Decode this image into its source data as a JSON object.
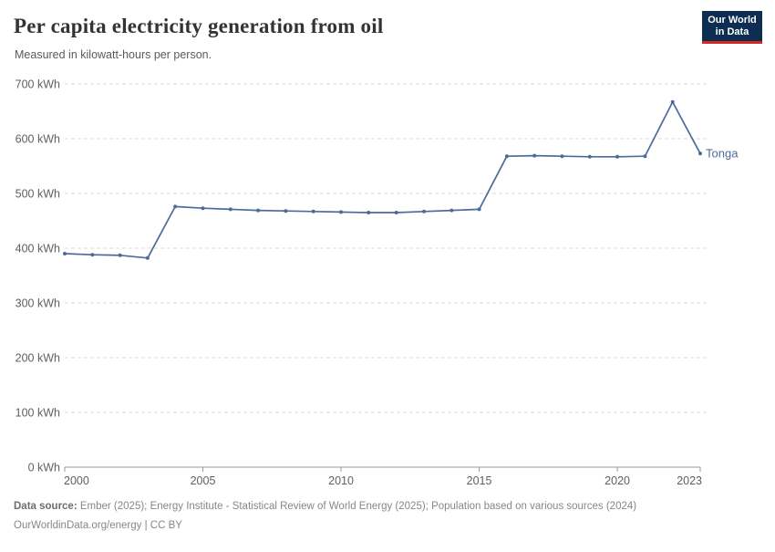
{
  "header": {
    "title": "Per capita electricity generation from oil",
    "subtitle": "Measured in kilowatt-hours per person.",
    "logo": {
      "line1": "Our World",
      "line2": "in Data"
    }
  },
  "colors": {
    "line": "#4c6a9c",
    "end_label": "#4c6a9c",
    "logo_bg": "#0d2e52",
    "logo_accent": "#d42b21",
    "gridline": "#dadada",
    "axis": "#999999",
    "tick_text": "#606060"
  },
  "chart_data": {
    "type": "line",
    "title": "Per capita electricity generation from oil",
    "subtitle": "Measured in kilowatt-hours per person.",
    "xlabel": "",
    "ylabel": "kWh",
    "xlim": [
      2000,
      2023
    ],
    "ylim": [
      0,
      700
    ],
    "grid": "dashed-horizontal",
    "legend_position": "end-of-line",
    "x_ticks": [
      2000,
      2005,
      2010,
      2015,
      2020,
      2023
    ],
    "y_ticks": [
      0,
      100,
      200,
      300,
      400,
      500,
      600,
      700
    ],
    "y_tick_suffix": " kWh",
    "series": [
      {
        "name": "Tonga",
        "x": [
          2000,
          2001,
          2002,
          2003,
          2004,
          2005,
          2006,
          2007,
          2008,
          2009,
          2010,
          2011,
          2012,
          2013,
          2014,
          2015,
          2016,
          2017,
          2018,
          2019,
          2020,
          2021,
          2022,
          2023
        ],
        "values": [
          390,
          388,
          387,
          382,
          476,
          473,
          471,
          469,
          468,
          467,
          466,
          465,
          465,
          467,
          469,
          471,
          568,
          569,
          568,
          567,
          567,
          568,
          667,
          573
        ]
      }
    ]
  },
  "footer": {
    "source_label": "Data source:",
    "source_text": " Ember (2025); Energy Institute - Statistical Review of World Energy (2025); Population based on various sources (2024)",
    "note": "OurWorldinData.org/energy | CC BY"
  }
}
